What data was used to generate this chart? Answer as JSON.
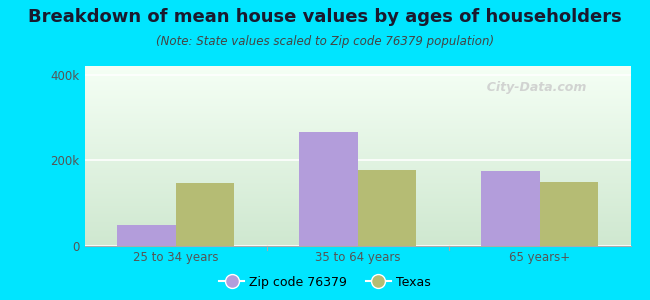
{
  "title": "Breakdown of mean house values by ages of householders",
  "subtitle": "(Note: State values scaled to Zip code 76379 population)",
  "categories": [
    "25 to 34 years",
    "35 to 64 years",
    "65 years+"
  ],
  "zip_values": [
    50000,
    265000,
    175000
  ],
  "texas_values": [
    148000,
    178000,
    150000
  ],
  "ylim": [
    0,
    420000
  ],
  "ytick_values": [
    0,
    200000,
    400000
  ],
  "ytick_labels": [
    "0",
    "200k",
    "400k"
  ],
  "zip_color": "#b39ddb",
  "texas_color": "#b5bc74",
  "background_color": "#00e5ff",
  "bar_width": 0.32,
  "legend_labels": [
    "Zip code 76379",
    "Texas"
  ],
  "watermark": "  City-Data.com",
  "title_fontsize": 13,
  "subtitle_fontsize": 8.5,
  "tick_fontsize": 8.5,
  "legend_fontsize": 9,
  "gradient_top": "#cfe8d0",
  "gradient_bottom": "#f5fff5"
}
